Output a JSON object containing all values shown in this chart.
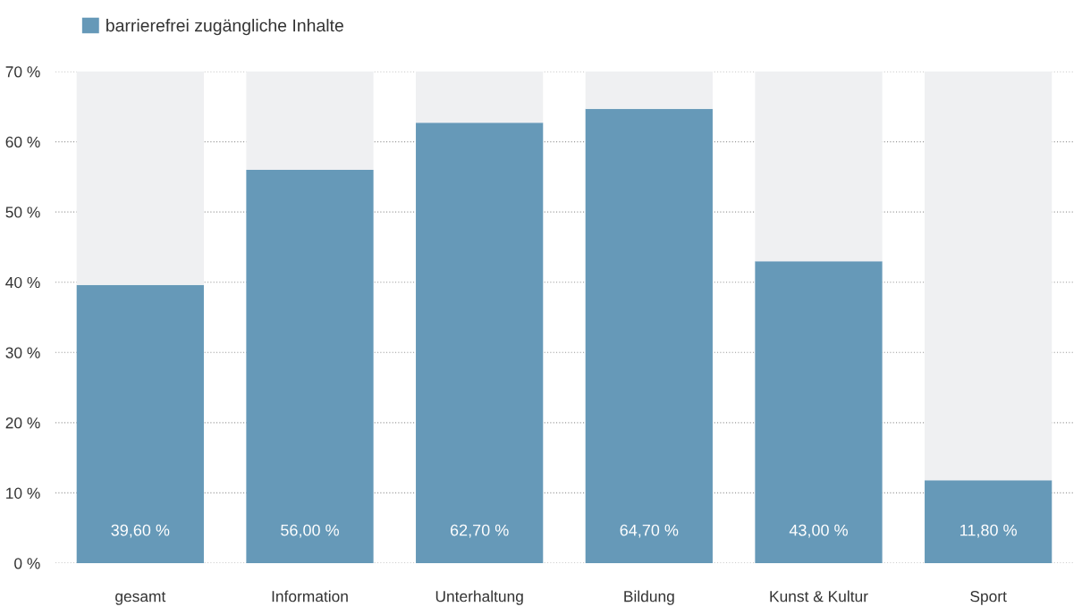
{
  "chart_data": {
    "type": "bar",
    "stacked": true,
    "categories": [
      "gesamt",
      "Information",
      "Unterhaltung",
      "Bildung",
      "Kunst & Kultur",
      "Sport"
    ],
    "series": [
      {
        "name": "barrierefrei zugängliche Inhalte",
        "color": "#6699b8",
        "values": [
          39.6,
          56.0,
          62.7,
          64.7,
          43.0,
          11.8
        ],
        "value_labels": [
          "39,60 %",
          "56,00 %",
          "62,70 %",
          "64,70 %",
          "43,00 %",
          "11,80 %"
        ]
      },
      {
        "color": "#eff0f2",
        "values": [
          30.4,
          14.0,
          7.3,
          5.3,
          27.0,
          58.2
        ]
      }
    ],
    "ylim": [
      0,
      70
    ],
    "yticks": [
      {
        "value": 0,
        "label": "0 %"
      },
      {
        "value": 10,
        "label": "10 %"
      },
      {
        "value": 20,
        "label": "20 %"
      },
      {
        "value": 30,
        "label": "30 %"
      },
      {
        "value": 40,
        "label": "40 %"
      },
      {
        "value": 50,
        "label": "50 %"
      },
      {
        "value": 60,
        "label": "60 %"
      },
      {
        "value": 70,
        "label": "70 %"
      }
    ],
    "grid": "y",
    "legend": "top left"
  }
}
